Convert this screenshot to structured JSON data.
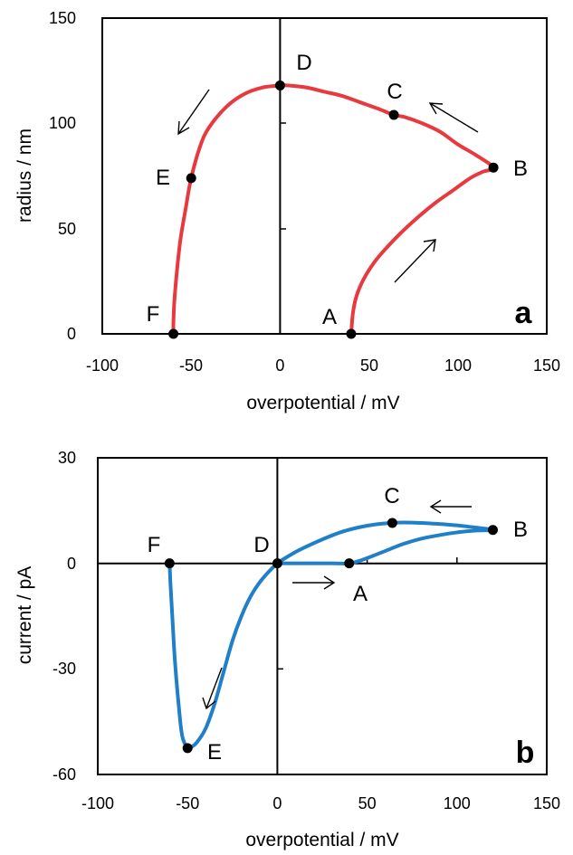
{
  "chart_data": [
    {
      "type": "line",
      "panel": "a",
      "xlabel": "overpotential / mV",
      "ylabel": "radius / nm",
      "xlim": [
        -100,
        150
      ],
      "ylim": [
        0,
        150
      ],
      "xticks": [
        "-100",
        "-50",
        "0",
        "50",
        "100",
        "150"
      ],
      "yticks": [
        "0",
        "50",
        "100",
        "150"
      ],
      "grid": false,
      "color": "#e8393f",
      "series": [
        {
          "x": [
            40,
            41,
            43,
            47,
            53,
            60,
            68,
            77,
            87,
            97,
            107,
            114,
            120,
            110,
            100,
            90,
            80,
            70,
            64,
            55,
            45,
            35,
            25,
            15,
            5,
            0,
            -10,
            -20,
            -30,
            -40,
            -45,
            -50,
            -53,
            -56,
            -58,
            -59.5,
            -60,
            -60
          ],
          "y": [
            0,
            10,
            18,
            26,
            34,
            41,
            48,
            55,
            62,
            68,
            74,
            77,
            79,
            85,
            90,
            96,
            100,
            103,
            104,
            107,
            110,
            113,
            115,
            117,
            118,
            118,
            117,
            114,
            108,
            98,
            89,
            74,
            60,
            45,
            30,
            15,
            5,
            0
          ]
        }
      ],
      "points": [
        {
          "label": "A",
          "x": 40,
          "y": 0
        },
        {
          "label": "B",
          "x": 120,
          "y": 79
        },
        {
          "label": "C",
          "x": 64,
          "y": 104
        },
        {
          "label": "D",
          "x": 0,
          "y": 118
        },
        {
          "label": "E",
          "x": -50,
          "y": 74
        },
        {
          "label": "F",
          "x": -60,
          "y": 0
        }
      ]
    },
    {
      "type": "line",
      "panel": "b",
      "xlabel": "overpotential / mV",
      "ylabel": "current / pA",
      "xlim": [
        -100,
        150
      ],
      "ylim": [
        -60,
        30
      ],
      "xticks": [
        "-100",
        "-50",
        "0",
        "50",
        "100",
        "150"
      ],
      "yticks": [
        "-60",
        "-30",
        "0",
        "30"
      ],
      "grid": false,
      "color": "#1f7fc8",
      "series": [
        {
          "x": [
            0,
            10,
            20,
            30,
            40,
            45,
            50,
            60,
            70,
            80,
            90,
            100,
            110,
            120,
            110,
            100,
            90,
            80,
            70,
            64,
            55,
            45,
            35,
            25,
            15,
            10,
            5,
            0,
            -5,
            -10,
            -15,
            -20,
            -25,
            -30,
            -35,
            -40,
            -45,
            -48,
            -50,
            -53,
            -55,
            -57,
            -58.5,
            -59.5,
            -60
          ],
          "y": [
            0,
            0,
            0,
            0,
            0,
            0.6,
            1.5,
            3.5,
            5.5,
            7,
            8,
            8.8,
            9.3,
            9.5,
            10.2,
            10.8,
            11.2,
            11.5,
            11.6,
            11.5,
            11.1,
            10.2,
            8.8,
            6.8,
            4.5,
            3.2,
            1.7,
            0,
            -2.5,
            -5.5,
            -9.5,
            -15,
            -22,
            -31,
            -40,
            -47,
            -51,
            -52.2,
            -52.5,
            -49,
            -40,
            -28,
            -15,
            -6,
            0
          ]
        }
      ],
      "points": [
        {
          "label": "A",
          "x": 40,
          "y": 0
        },
        {
          "label": "B",
          "x": 120,
          "y": 9.5
        },
        {
          "label": "C",
          "x": 64,
          "y": 11.5
        },
        {
          "label": "D",
          "x": 0,
          "y": 0
        },
        {
          "label": "E",
          "x": -50,
          "y": -52.5
        },
        {
          "label": "F",
          "x": -60,
          "y": 0
        }
      ]
    }
  ]
}
